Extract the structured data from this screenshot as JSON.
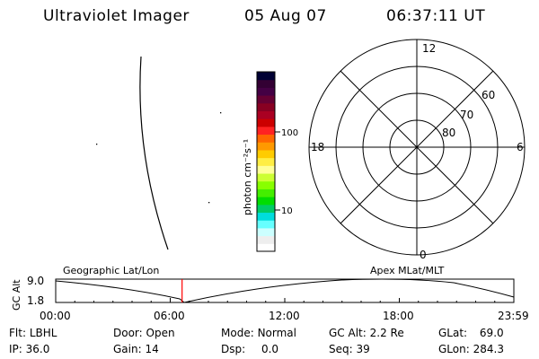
{
  "header": {
    "instrument": "Ultraviolet Imager",
    "date": "05 Aug 07",
    "time": "06:37:11 UT"
  },
  "colorbar": {
    "unit_label": "photon cm⁻²s⁻¹",
    "ticks": [
      "100",
      "10"
    ],
    "colors": [
      "#000033",
      "#330033",
      "#440044",
      "#660033",
      "#880022",
      "#aa0022",
      "#cc0000",
      "#ff2222",
      "#ff6600",
      "#ff9900",
      "#ffcc00",
      "#ffee44",
      "#ffff99",
      "#ccff33",
      "#88ff00",
      "#44ee00",
      "#00dd00",
      "#00cc66",
      "#00dddd",
      "#66ffff",
      "#ccffff",
      "#eeeeee",
      "#ffffff"
    ]
  },
  "polar": {
    "mlt_labels": {
      "top": "12",
      "left": "18",
      "right": "6",
      "bottom": "0"
    },
    "lat_labels": [
      "60",
      "70",
      "80"
    ]
  },
  "timeline": {
    "left_label": "Geographic Lat/Lon",
    "right_label": "Apex MLat/MLT",
    "y_axis_label": "GC Alt",
    "y_max": "9.0",
    "y_min": "1.8",
    "x_ticks": [
      "00:00",
      "06:00",
      "12:00",
      "18:00",
      "23:59"
    ],
    "current_time_hours": 6.62
  },
  "info": {
    "flt_label": "Flt:",
    "flt_value": "LBHL",
    "ip_label": "IP:",
    "ip_value": "36.0",
    "door_label": "Door:",
    "door_value": "Open",
    "gain_label": "Gain:",
    "gain_value": "14",
    "mode_label": "Mode:",
    "mode_value": "Normal",
    "dsp_label": "Dsp:",
    "dsp_value": "0.0",
    "gcalt_label": "GC Alt:",
    "gcalt_value": "2.2 Re",
    "seq_label": "Seq:",
    "seq_value": "39",
    "glat_label": "GLat:",
    "glat_value": "69.0",
    "glon_label": "GLon:",
    "glon_value": "284.3"
  }
}
